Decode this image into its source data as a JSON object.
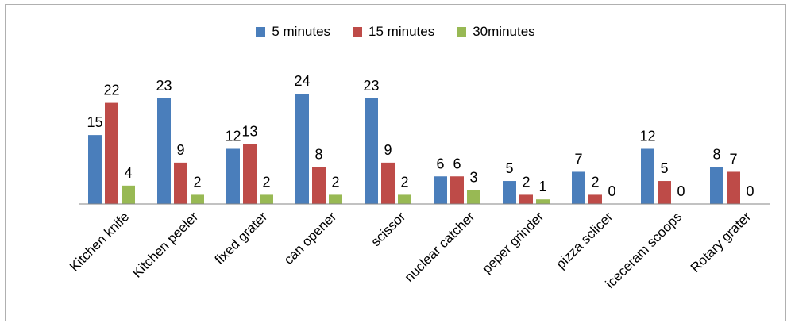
{
  "chart_data": {
    "type": "bar",
    "title": "",
    "xlabel": "",
    "ylabel": "",
    "ylim": [
      0,
      24
    ],
    "grid": false,
    "legend_position": "top",
    "categories": [
      "Kitchen knife",
      "Kitchen peeler",
      "fixed grater",
      "can opener",
      "scissor",
      "nuclear catcher",
      "peper grinder",
      "pizza sclicer",
      "iceceram scoops",
      "Rotary grater"
    ],
    "series": [
      {
        "name": "5 minutes",
        "color": "#4a7ebb",
        "values": [
          15,
          23,
          12,
          24,
          23,
          6,
          5,
          7,
          12,
          8
        ]
      },
      {
        "name": "15 minutes",
        "color": "#be4b48",
        "values": [
          22,
          9,
          13,
          8,
          9,
          6,
          2,
          2,
          5,
          7
        ]
      },
      {
        "name": "30minutes",
        "color": "#98b954",
        "values": [
          4,
          2,
          2,
          2,
          2,
          3,
          1,
          0,
          0,
          0
        ]
      }
    ]
  }
}
